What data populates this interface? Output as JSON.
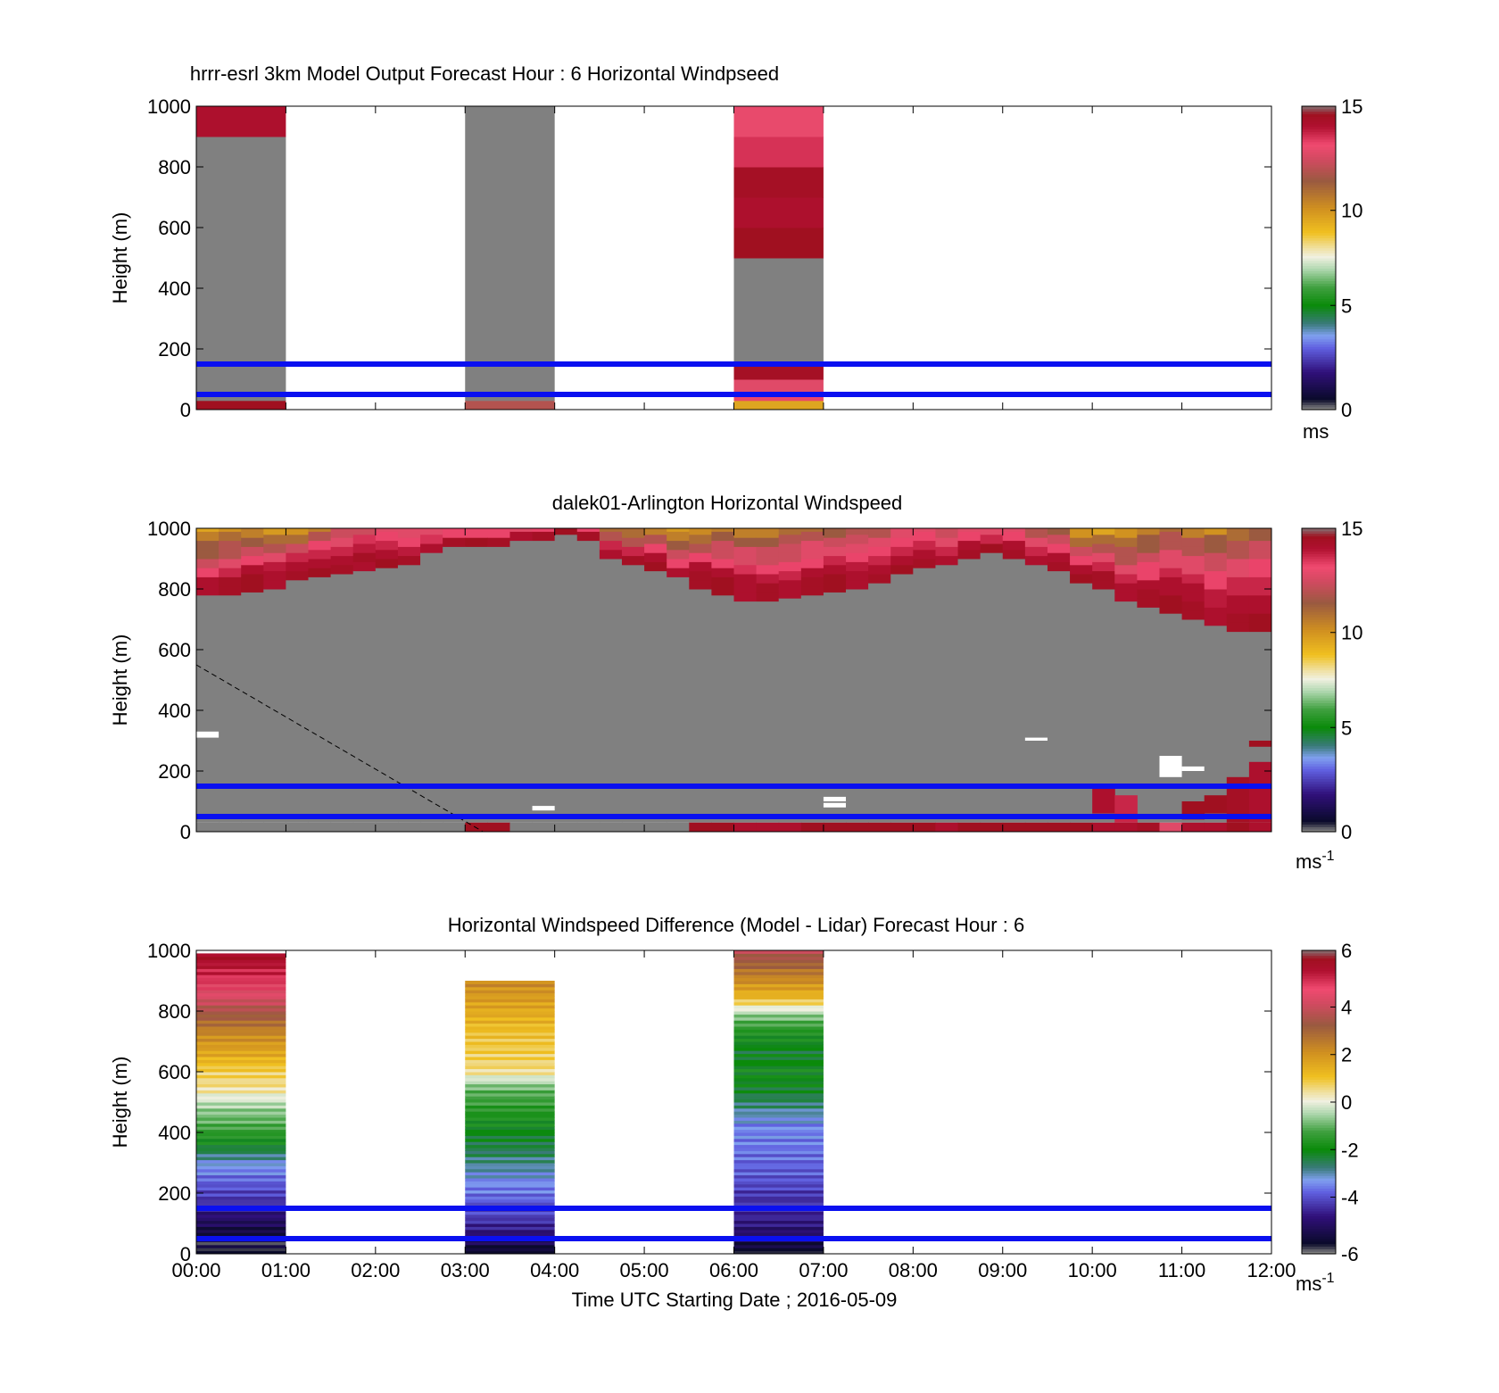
{
  "figure": {
    "xlabel": "Time UTC  Starting Date ; 2016-05-09",
    "xticks": [
      "00:00",
      "01:00",
      "02:00",
      "03:00",
      "04:00",
      "05:00",
      "06:00",
      "07:00",
      "08:00",
      "09:00",
      "10:00",
      "11:00",
      "12:00"
    ]
  },
  "chart_data": [
    {
      "type": "heatmap",
      "title": "hrrr-esrl 3km Model Output   Forecast Hour : 6 Horizontal Windpseed",
      "ylabel": "Height (m)",
      "xlim": [
        0,
        12
      ],
      "ylim": [
        0,
        1000
      ],
      "yticks": [
        0,
        200,
        400,
        600,
        800,
        1000
      ],
      "colorbar": {
        "min": 0,
        "max": 15,
        "ticks": [
          0,
          5,
          10,
          15
        ],
        "unit": "ms",
        "unit_sup": ""
      },
      "reference_lines_m": [
        50,
        150
      ],
      "columns": [
        {
          "start_hour": 0,
          "end_hour": 1,
          "cells": [
            {
              "from": 0,
              "to": 30,
              "value": 15
            },
            {
              "from": 30,
              "to": 900,
              "value": 0
            },
            {
              "from": 900,
              "to": 1000,
              "value": 14.5
            }
          ]
        },
        {
          "start_hour": 3,
          "end_hour": 4,
          "cells": [
            {
              "from": 0,
              "to": 30,
              "value": 12
            },
            {
              "from": 30,
              "to": 1000,
              "value": 0
            }
          ]
        },
        {
          "start_hour": 6,
          "end_hour": 7,
          "cells": [
            {
              "from": 0,
              "to": 30,
              "value": 9.5
            },
            {
              "from": 30,
              "to": 60,
              "value": 13.5
            },
            {
              "from": 60,
              "to": 100,
              "value": 13
            },
            {
              "from": 100,
              "to": 150,
              "value": 14.8
            },
            {
              "from": 150,
              "to": 500,
              "value": 0
            },
            {
              "from": 500,
              "to": 600,
              "value": 15
            },
            {
              "from": 600,
              "to": 700,
              "value": 14.5
            },
            {
              "from": 700,
              "to": 800,
              "value": 14.8
            },
            {
              "from": 800,
              "to": 900,
              "value": 13.8
            },
            {
              "from": 900,
              "to": 1000,
              "value": 13.2
            }
          ]
        }
      ]
    },
    {
      "type": "heatmap",
      "title": "dalek01-Arlington  Horizontal Windspeed",
      "ylabel": "Height (m)",
      "xlim": [
        0,
        12
      ],
      "ylim": [
        0,
        1000
      ],
      "yticks": [
        0,
        200,
        400,
        600,
        800,
        1000
      ],
      "colorbar": {
        "min": 0,
        "max": 15,
        "ticks": [
          0,
          5,
          10,
          15
        ],
        "unit": "ms",
        "unit_sup": "-1"
      },
      "reference_lines_m": [
        50,
        150
      ],
      "gate_height_m": 30,
      "column_width_hours": 0.25,
      "diagonal_dashed_line": [
        [
          0,
          550
        ],
        [
          3.2,
          0
        ]
      ],
      "cloud_base_m": [
        780,
        780,
        790,
        800,
        830,
        840,
        850,
        860,
        870,
        880,
        920,
        940,
        940,
        940,
        960,
        960,
        980,
        960,
        900,
        880,
        860,
        840,
        800,
        780,
        760,
        760,
        770,
        780,
        790,
        800,
        820,
        850,
        870,
        880,
        900,
        920,
        900,
        880,
        860,
        820,
        800,
        760,
        740,
        720,
        700,
        680,
        660,
        660
      ],
      "top_profile_m_per_s": [
        [
          14.5,
          13.5,
          12.5,
          11.5,
          10.5,
          9.5
        ],
        [
          14.8,
          14,
          13,
          12,
          11,
          10
        ],
        [
          15,
          14.5,
          13.5,
          12.5,
          11.5,
          10.5
        ],
        [
          14.5,
          14.2,
          13,
          12,
          11,
          9.8
        ],
        [
          14.8,
          14.5,
          14,
          12.5,
          11,
          10
        ],
        [
          15,
          14.5,
          14,
          13.5,
          12,
          10.5
        ],
        [
          14.8,
          14.5,
          14,
          13,
          12.5,
          11.5
        ],
        [
          14.5,
          14.8,
          14.2,
          13.8,
          12.5,
          11
        ],
        [
          15,
          14.5,
          14,
          13.5,
          13,
          12
        ],
        [
          14.8,
          14.2,
          13.8,
          13.5,
          13,
          12.5
        ],
        [
          14.5,
          14,
          13.8,
          13.5,
          13,
          12.5
        ],
        [
          14.8,
          14.5,
          14,
          13.5,
          13,
          12
        ],
        [
          15,
          14.5,
          14,
          13.5,
          13,
          12.5
        ],
        [
          14.8,
          14.5,
          14,
          13.5,
          13,
          12.5
        ],
        [
          14.5,
          14,
          13.5,
          13,
          12.5,
          12
        ],
        [
          14.8,
          14.5,
          14,
          13.5,
          13,
          12.5
        ],
        [
          15,
          14.5,
          14,
          13.5,
          13,
          12.5
        ],
        [
          14.8,
          14.5,
          14,
          13.5,
          13,
          12.5
        ],
        [
          14.5,
          14,
          13.5,
          12,
          11,
          10
        ],
        [
          14.8,
          14,
          13,
          12,
          11,
          9.5
        ],
        [
          15,
          14.5,
          13.5,
          12,
          10.5,
          9.5
        ],
        [
          14.5,
          13.5,
          12.5,
          11.5,
          10.5,
          9.8
        ],
        [
          14.8,
          14.5,
          13.5,
          12,
          11,
          10.2
        ],
        [
          15,
          14.5,
          13.5,
          12.5,
          11.5,
          10.5
        ],
        [
          14.5,
          14.5,
          13.8,
          12.8,
          11.5,
          10.5
        ],
        [
          14.8,
          14.2,
          13.5,
          12.5,
          11.5,
          10.5
        ],
        [
          14.5,
          14,
          13.5,
          12.5,
          12,
          11
        ],
        [
          14.8,
          14.5,
          13.5,
          13,
          12,
          11
        ],
        [
          15,
          14.5,
          14,
          13,
          12.5,
          11.5
        ],
        [
          14.5,
          14.2,
          13.5,
          13,
          12.5,
          12
        ],
        [
          14.8,
          14.5,
          14,
          13.5,
          13,
          12
        ],
        [
          15,
          14.5,
          14,
          13.5,
          13,
          12.5
        ],
        [
          14.8,
          14.5,
          14,
          13.5,
          13,
          12.5
        ],
        [
          14.5,
          14,
          13.5,
          13,
          12.5,
          12
        ],
        [
          14.8,
          14.5,
          14,
          13.5,
          13,
          12.5
        ],
        [
          15,
          14.5,
          14,
          13.5,
          13,
          12.5
        ],
        [
          14.8,
          14.5,
          14,
          13.5,
          13,
          12
        ],
        [
          14.5,
          14,
          13.5,
          13,
          12,
          11
        ],
        [
          14.8,
          14.5,
          13.5,
          12.5,
          11.5,
          10.5
        ],
        [
          15,
          14.5,
          13.5,
          12.5,
          11,
          10
        ],
        [
          14.8,
          14,
          13,
          12,
          11,
          9.5
        ],
        [
          14.5,
          14,
          13,
          12,
          11,
          10
        ],
        [
          14.8,
          14.5,
          13.5,
          12.5,
          11.5,
          10.5
        ],
        [
          15,
          14.5,
          14,
          13,
          12,
          11
        ],
        [
          14.8,
          14.5,
          14,
          13,
          12,
          10.5
        ],
        [
          14.5,
          14.2,
          13.5,
          12.5,
          11.5,
          10
        ],
        [
          14.8,
          14.5,
          14,
          13,
          12,
          11
        ],
        [
          15,
          14.5,
          14,
          13.5,
          12.5,
          11.5
        ]
      ],
      "surface_values_m_per_s": [
        0,
        0,
        0,
        0,
        0,
        0,
        0,
        0,
        0,
        0,
        0,
        0,
        15,
        15,
        0,
        0,
        0,
        0,
        0,
        0,
        0,
        0,
        15,
        15,
        14.5,
        14.5,
        14.5,
        15,
        15,
        15,
        15,
        15,
        15,
        14.5,
        15,
        15,
        15,
        15,
        15,
        15,
        14.5,
        14.5,
        14.8,
        13,
        14.5,
        14.5,
        15,
        14.5
      ],
      "low_jets": [
        {
          "column": 40,
          "from": 60,
          "to": 150,
          "value": 14.5
        },
        {
          "column": 41,
          "from": 30,
          "to": 120,
          "value": 14
        },
        {
          "column": 44,
          "from": 40,
          "to": 100,
          "value": 15
        },
        {
          "column": 45,
          "from": 60,
          "to": 120,
          "value": 15
        },
        {
          "column": 46,
          "from": 30,
          "to": 180,
          "value": 14.8
        },
        {
          "column": 47,
          "from": 30,
          "to": 230,
          "value": 14.5
        },
        {
          "column": 47,
          "from": 280,
          "to": 300,
          "value": 15
        }
      ],
      "missing_patches": [
        {
          "column": 0,
          "from": 310,
          "to": 330
        },
        {
          "column": 15,
          "from": 70,
          "to": 85
        },
        {
          "column": 43,
          "from": 180,
          "to": 250
        },
        {
          "column": 44,
          "from": 200,
          "to": 215
        },
        {
          "column": 37,
          "from": 300,
          "to": 310
        },
        {
          "column": 28,
          "from": 80,
          "to": 95
        },
        {
          "column": 28,
          "from": 100,
          "to": 115
        }
      ]
    },
    {
      "type": "heatmap",
      "title": "Horizontal Windspeed Difference (Model - Lidar) Forecast Hour : 6",
      "ylabel": "Height (m)",
      "xlim": [
        0,
        12
      ],
      "ylim": [
        0,
        1000
      ],
      "yticks": [
        0,
        200,
        400,
        600,
        800,
        1000
      ],
      "colorbar": {
        "min": -6,
        "max": 6,
        "ticks": [
          -6,
          -4,
          -2,
          0,
          2,
          4,
          6
        ],
        "unit": "ms",
        "unit_sup": "-1"
      },
      "reference_lines_m": [
        50,
        150
      ],
      "gate_height_m": 10,
      "columns": [
        {
          "start_hour": 0,
          "end_hour": 1,
          "profile_m": [
            0,
            60,
            120,
            180,
            240,
            300,
            360,
            420,
            480,
            540,
            600,
            660,
            720,
            780,
            840,
            900,
            960,
            990
          ],
          "profile_values": [
            -6,
            -5.8,
            -5,
            -4.3,
            -3.8,
            -3.2,
            -2,
            -1.2,
            -0.6,
            0.4,
            0.8,
            1.6,
            2.2,
            3.2,
            4.2,
            5,
            5.6,
            6
          ]
        },
        {
          "start_hour": 3,
          "end_hour": 4,
          "profile_m": [
            0,
            60,
            120,
            180,
            240,
            300,
            360,
            420,
            480,
            540,
            600,
            660,
            720,
            780,
            840,
            900
          ],
          "profile_values": [
            -6,
            -5,
            -4.2,
            -3.8,
            -3.4,
            -2.8,
            -2.4,
            -2,
            -1.5,
            -1,
            0.5,
            0.8,
            1,
            1.4,
            1.8,
            2.2
          ]
        },
        {
          "start_hour": 6,
          "end_hour": 7,
          "profile_m": [
            0,
            60,
            120,
            180,
            240,
            300,
            360,
            420,
            480,
            540,
            600,
            660,
            720,
            780,
            840,
            900,
            960,
            1000
          ],
          "profile_values": [
            -6,
            -5.2,
            -4.6,
            -4.4,
            -4,
            -3.8,
            -3.6,
            -3.5,
            -2.8,
            -2.2,
            -2,
            -2.3,
            -1.8,
            -0.8,
            1.2,
            2.2,
            3.2,
            3.8
          ]
        }
      ]
    }
  ]
}
